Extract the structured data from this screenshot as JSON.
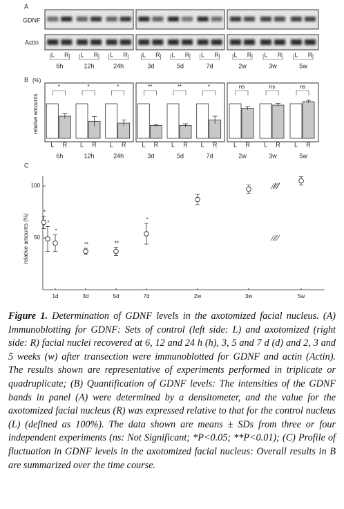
{
  "panel_labels": [
    "A",
    "B",
    "C"
  ],
  "blot": {
    "rows": [
      "GDNF",
      "Actin"
    ],
    "lanes": [
      "L",
      "R"
    ],
    "times": [
      "6h",
      "12h",
      "24h",
      "3d",
      "5d",
      "7d",
      "2w",
      "3w",
      "5w"
    ]
  },
  "chart_data": [
    {
      "type": "bar",
      "ylabel": "relative amounts",
      "yunit": "(%)",
      "categories": [
        "6h",
        "12h",
        "24h",
        "3d",
        "5d",
        "7d",
        "2w",
        "3w",
        "5w"
      ],
      "series": [
        {
          "name": "L",
          "color": "#ffffff",
          "values": [
            100,
            100,
            100,
            100,
            100,
            100,
            100,
            100,
            100
          ]
        },
        {
          "name": "R",
          "color": "#c8c8c8",
          "values": [
            64,
            49,
            44,
            37,
            37,
            53,
            87,
            96,
            106
          ],
          "errors": [
            7,
            14,
            9,
            3,
            5,
            11,
            5,
            5,
            4
          ]
        }
      ],
      "significance": [
        "*",
        "*",
        "*",
        "**",
        "**",
        "*",
        "ns",
        "ns",
        "ns"
      ],
      "ylim": [
        0,
        160
      ]
    },
    {
      "type": "errorbar",
      "ylabel": "relative amounts (%)",
      "x": [
        0.25,
        0.5,
        1,
        3,
        5,
        7,
        14,
        21,
        35
      ],
      "values": [
        65,
        49,
        45,
        37,
        37,
        54,
        87,
        97,
        105
      ],
      "errors": [
        6,
        12,
        8,
        3,
        4,
        10,
        5,
        4,
        4
      ],
      "point_labels": [
        "*",
        "*",
        "*",
        "**",
        "**",
        "*",
        null,
        null,
        null
      ],
      "xlim": [
        0,
        35
      ],
      "xticks": [
        {
          "value": 1,
          "label": "1d"
        },
        {
          "value": 3,
          "label": "3d"
        },
        {
          "value": 5,
          "label": "5d"
        },
        {
          "value": 7,
          "label": "7d"
        },
        {
          "value": 14,
          "label": "2w"
        },
        {
          "value": 21,
          "label": "3w"
        },
        {
          "value": 35,
          "label": "5w"
        }
      ],
      "ylim": [
        0,
        110
      ],
      "yticks": [
        50,
        100
      ]
    }
  ],
  "caption": {
    "label": "Figure 1.",
    "text": "Determination of GDNF levels in the axotomized facial nucleus. (A) Immunoblotting for GDNF: Sets of control (left side: L) and axotomized (right side: R) facial nuclei recovered at 6, 12 and 24 h (h), 3, 5 and 7 d (d) and 2, 3 and 5 weeks (w) after transection were immunoblotted for GDNF and actin (Actin). The results shown are representative of experiments performed in triplicate or quadruplicate; (B) Quantification of GDNF levels: The intensities of the GDNF bands in panel (A) were determined by a densitometer, and the value for the axotomized facial nucleus (R) was expressed relative to that for the control nucleus (L) (defined as 100%). The data shown are means ± SDs from three or four independent experiments (ns: Not Significant; *P<0.05; **P<0.01); (C) Profile of fluctuation in GDNF levels in the axotomized facial nucleus: Overall results in B are summarized over the time course."
  }
}
